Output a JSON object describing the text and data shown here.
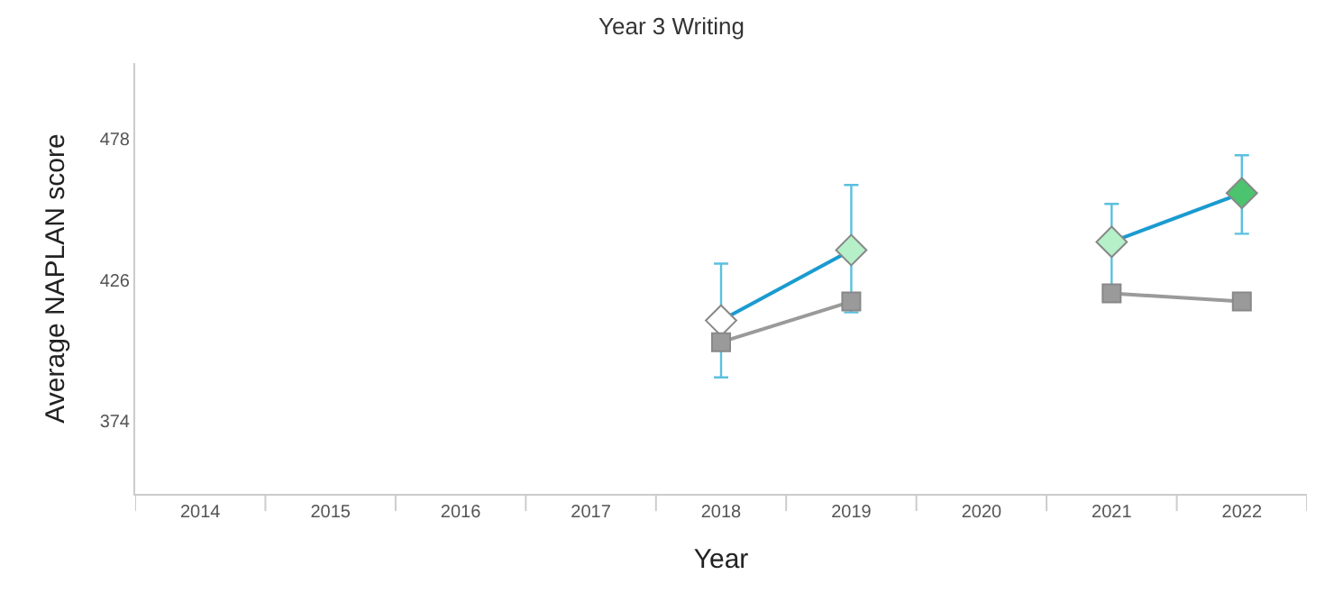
{
  "chart_data": {
    "type": "line",
    "title": "Year 3 Writing",
    "xlabel": "Year",
    "ylabel": "Average NAPLAN score",
    "categories": [
      "2014",
      "2015",
      "2016",
      "2017",
      "2018",
      "2019",
      "2020",
      "2021",
      "2022"
    ],
    "series": [
      {
        "color": "#1a9bd0",
        "marker": "diamond",
        "colors": [
          null,
          null,
          null,
          null,
          "#ffffff",
          "#b5f0c8",
          null,
          "#b5f0c8",
          "#4cc36e"
        ],
        "values": [
          null,
          null,
          null,
          null,
          411,
          437,
          null,
          440,
          458
        ],
        "errors": [
          null,
          null,
          null,
          null,
          [
            390,
            432
          ],
          [
            414,
            461
          ],
          null,
          [
            424,
            454
          ],
          [
            443,
            472
          ]
        ]
      },
      {
        "color": "#9a9a9a",
        "marker": "square",
        "values": [
          null,
          null,
          null,
          null,
          403,
          418,
          null,
          421,
          418
        ]
      }
    ],
    "ylim": [
      347,
      506
    ],
    "yticks": [
      374,
      426,
      478
    ]
  }
}
